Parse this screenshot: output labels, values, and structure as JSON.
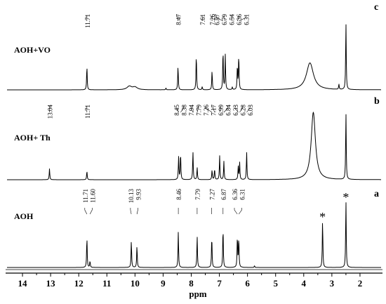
{
  "chart_data": {
    "type": "line",
    "xlabel": "ppm",
    "x_reversed": true,
    "xlim": [
      14.6,
      1.2
    ],
    "xticks": [
      14,
      13,
      12,
      11,
      10,
      9,
      8,
      7,
      6,
      5,
      4,
      3,
      2
    ],
    "series": [
      {
        "name": "AOH+VO",
        "panel": "c",
        "peak_labels": [
          "11.71",
          "8.47",
          "7.61",
          "7.26",
          "6.87",
          "6.79",
          "6.54",
          "6.36",
          "6.31"
        ],
        "peaks": [
          {
            "ppm": 11.71,
            "height": 0.55
          },
          {
            "ppm": 10.2,
            "height": 0.08,
            "width": 0.1
          },
          {
            "ppm": 10.0,
            "height": 0.06,
            "width": 0.1
          },
          {
            "ppm": 8.9,
            "height": 0.04
          },
          {
            "ppm": 8.47,
            "height": 0.55
          },
          {
            "ppm": 7.82,
            "height": 0.82
          },
          {
            "ppm": 7.61,
            "height": 0.07
          },
          {
            "ppm": 7.26,
            "height": 0.44
          },
          {
            "ppm": 6.87,
            "height": 0.92
          },
          {
            "ppm": 6.79,
            "height": 0.8
          },
          {
            "ppm": 6.54,
            "height": 0.06
          },
          {
            "ppm": 6.36,
            "height": 0.55
          },
          {
            "ppm": 6.31,
            "height": 0.8
          },
          {
            "ppm": 3.78,
            "height": 0.62,
            "width": 0.15
          },
          {
            "ppm": 2.75,
            "height": 0.12
          },
          {
            "ppm": 2.5,
            "height": 1.55
          }
        ]
      },
      {
        "name": "AOH+ Th",
        "panel": "b",
        "peak_labels": [
          "13.04",
          "11.71",
          "8.45",
          "8.38",
          "7.94",
          "7.79",
          "7.26",
          "7.17",
          "6.99",
          "6.84",
          "6.33",
          "6.28",
          "6.03"
        ],
        "peaks": [
          {
            "ppm": 13.04,
            "height": 0.25
          },
          {
            "ppm": 11.71,
            "height": 0.2
          },
          {
            "ppm": 8.45,
            "height": 0.52
          },
          {
            "ppm": 8.38,
            "height": 0.62
          },
          {
            "ppm": 7.94,
            "height": 0.65
          },
          {
            "ppm": 7.79,
            "height": 0.28
          },
          {
            "ppm": 7.26,
            "height": 0.22
          },
          {
            "ppm": 7.17,
            "height": 0.25
          },
          {
            "ppm": 6.99,
            "height": 0.55
          },
          {
            "ppm": 6.84,
            "height": 0.42
          },
          {
            "ppm": 6.33,
            "height": 0.3
          },
          {
            "ppm": 6.28,
            "height": 0.4
          },
          {
            "ppm": 6.03,
            "height": 0.63
          },
          {
            "ppm": 3.66,
            "height": 1.55,
            "width": 0.09
          },
          {
            "ppm": 2.5,
            "height": 1.55
          }
        ]
      },
      {
        "name": "AOH",
        "panel": "a",
        "peak_labels": [
          "11.71",
          "11.60",
          "10.13",
          "9.93",
          "8.46",
          "7.79",
          "7.27",
          "6.87",
          "6.36",
          "6.31"
        ],
        "peaks": [
          {
            "ppm": 11.71,
            "height": 0.7
          },
          {
            "ppm": 11.6,
            "height": 0.15
          },
          {
            "ppm": 10.13,
            "height": 0.62
          },
          {
            "ppm": 9.93,
            "height": 0.5
          },
          {
            "ppm": 8.46,
            "height": 0.82
          },
          {
            "ppm": 7.79,
            "height": 0.72
          },
          {
            "ppm": 7.27,
            "height": 0.73
          },
          {
            "ppm": 6.87,
            "height": 0.92
          },
          {
            "ppm": 6.36,
            "height": 0.72
          },
          {
            "ppm": 6.31,
            "height": 0.68
          },
          {
            "ppm": 5.75,
            "height": 0.04
          },
          {
            "ppm": 3.33,
            "height": 1.1
          },
          {
            "ppm": 2.5,
            "height": 1.55
          }
        ],
        "annotations": [
          {
            "text": "*",
            "ppm": 3.33
          },
          {
            "text": "*",
            "ppm": 2.5
          }
        ]
      }
    ]
  }
}
